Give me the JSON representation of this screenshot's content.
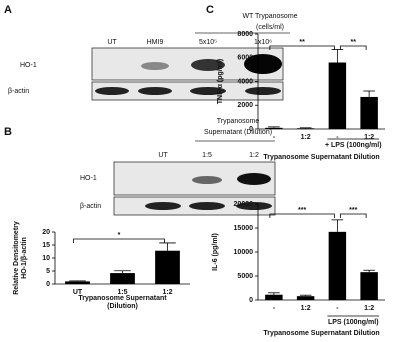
{
  "panel_labels": [
    "A",
    "B",
    "C"
  ],
  "blot_a": {
    "header": [
      "WT Trypanosome",
      "(cells/ml)"
    ],
    "columns": [
      "UT",
      "HMI9",
      "5x10⁵",
      "1x10⁶"
    ],
    "rows": [
      "HO-1",
      "β-actin"
    ]
  },
  "blot_b": {
    "header": [
      "Trypanosome",
      "Supernatant (Dilution)"
    ],
    "columns": [
      "UT",
      "1:5",
      "1:2"
    ],
    "rows": [
      "HO-1",
      "β-actin"
    ]
  },
  "chart_data": [
    {
      "type": "bar",
      "categories": [
        "UT",
        "1:5",
        "1:2"
      ],
      "values": [
        1,
        4.2,
        12.8
      ],
      "errors": [
        0.2,
        0.9,
        3
      ],
      "color": "#000000",
      "ylim": [
        0,
        20
      ],
      "yticks": [
        0,
        5,
        10,
        15,
        20
      ],
      "ylabel": [
        "Relative Densitometry",
        "HO-1/β-actin"
      ],
      "xlabel": [
        "Trypanosome Supernatant",
        "(Dilution)"
      ],
      "annotations": [
        "*"
      ]
    },
    {
      "type": "bar",
      "categories": [
        "-",
        "1:2",
        "-",
        "1:2"
      ],
      "values": [
        100,
        60,
        5600,
        2700
      ],
      "errors": [
        80,
        40,
        1100,
        500
      ],
      "color": "#000000",
      "ylim": [
        0,
        8000
      ],
      "yticks": [
        0,
        2000,
        4000,
        6000,
        8000
      ],
      "ylabel": [
        "TNF-α (pg/ml)"
      ],
      "xlabel": [
        "Trypanosome Supernatant Dilution"
      ],
      "group_label": "+ LPS (100ng/ml)",
      "annotations": [
        "**",
        "**"
      ]
    },
    {
      "type": "bar",
      "categories": [
        "-",
        "1:2",
        "-",
        "1:2"
      ],
      "values": [
        1100,
        800,
        14200,
        5800
      ],
      "errors": [
        400,
        200,
        2500,
        400
      ],
      "color": "#000000",
      "ylim": [
        0,
        20000
      ],
      "yticks": [
        0,
        5000,
        10000,
        15000,
        20000
      ],
      "ylabel": [
        "IL-6 (pg/ml)"
      ],
      "xlabel": [
        "Trypanosome Supernatant Dilution"
      ],
      "group_label": "LPS (100ng/ml)",
      "annotations": [
        "***",
        "***"
      ]
    }
  ]
}
